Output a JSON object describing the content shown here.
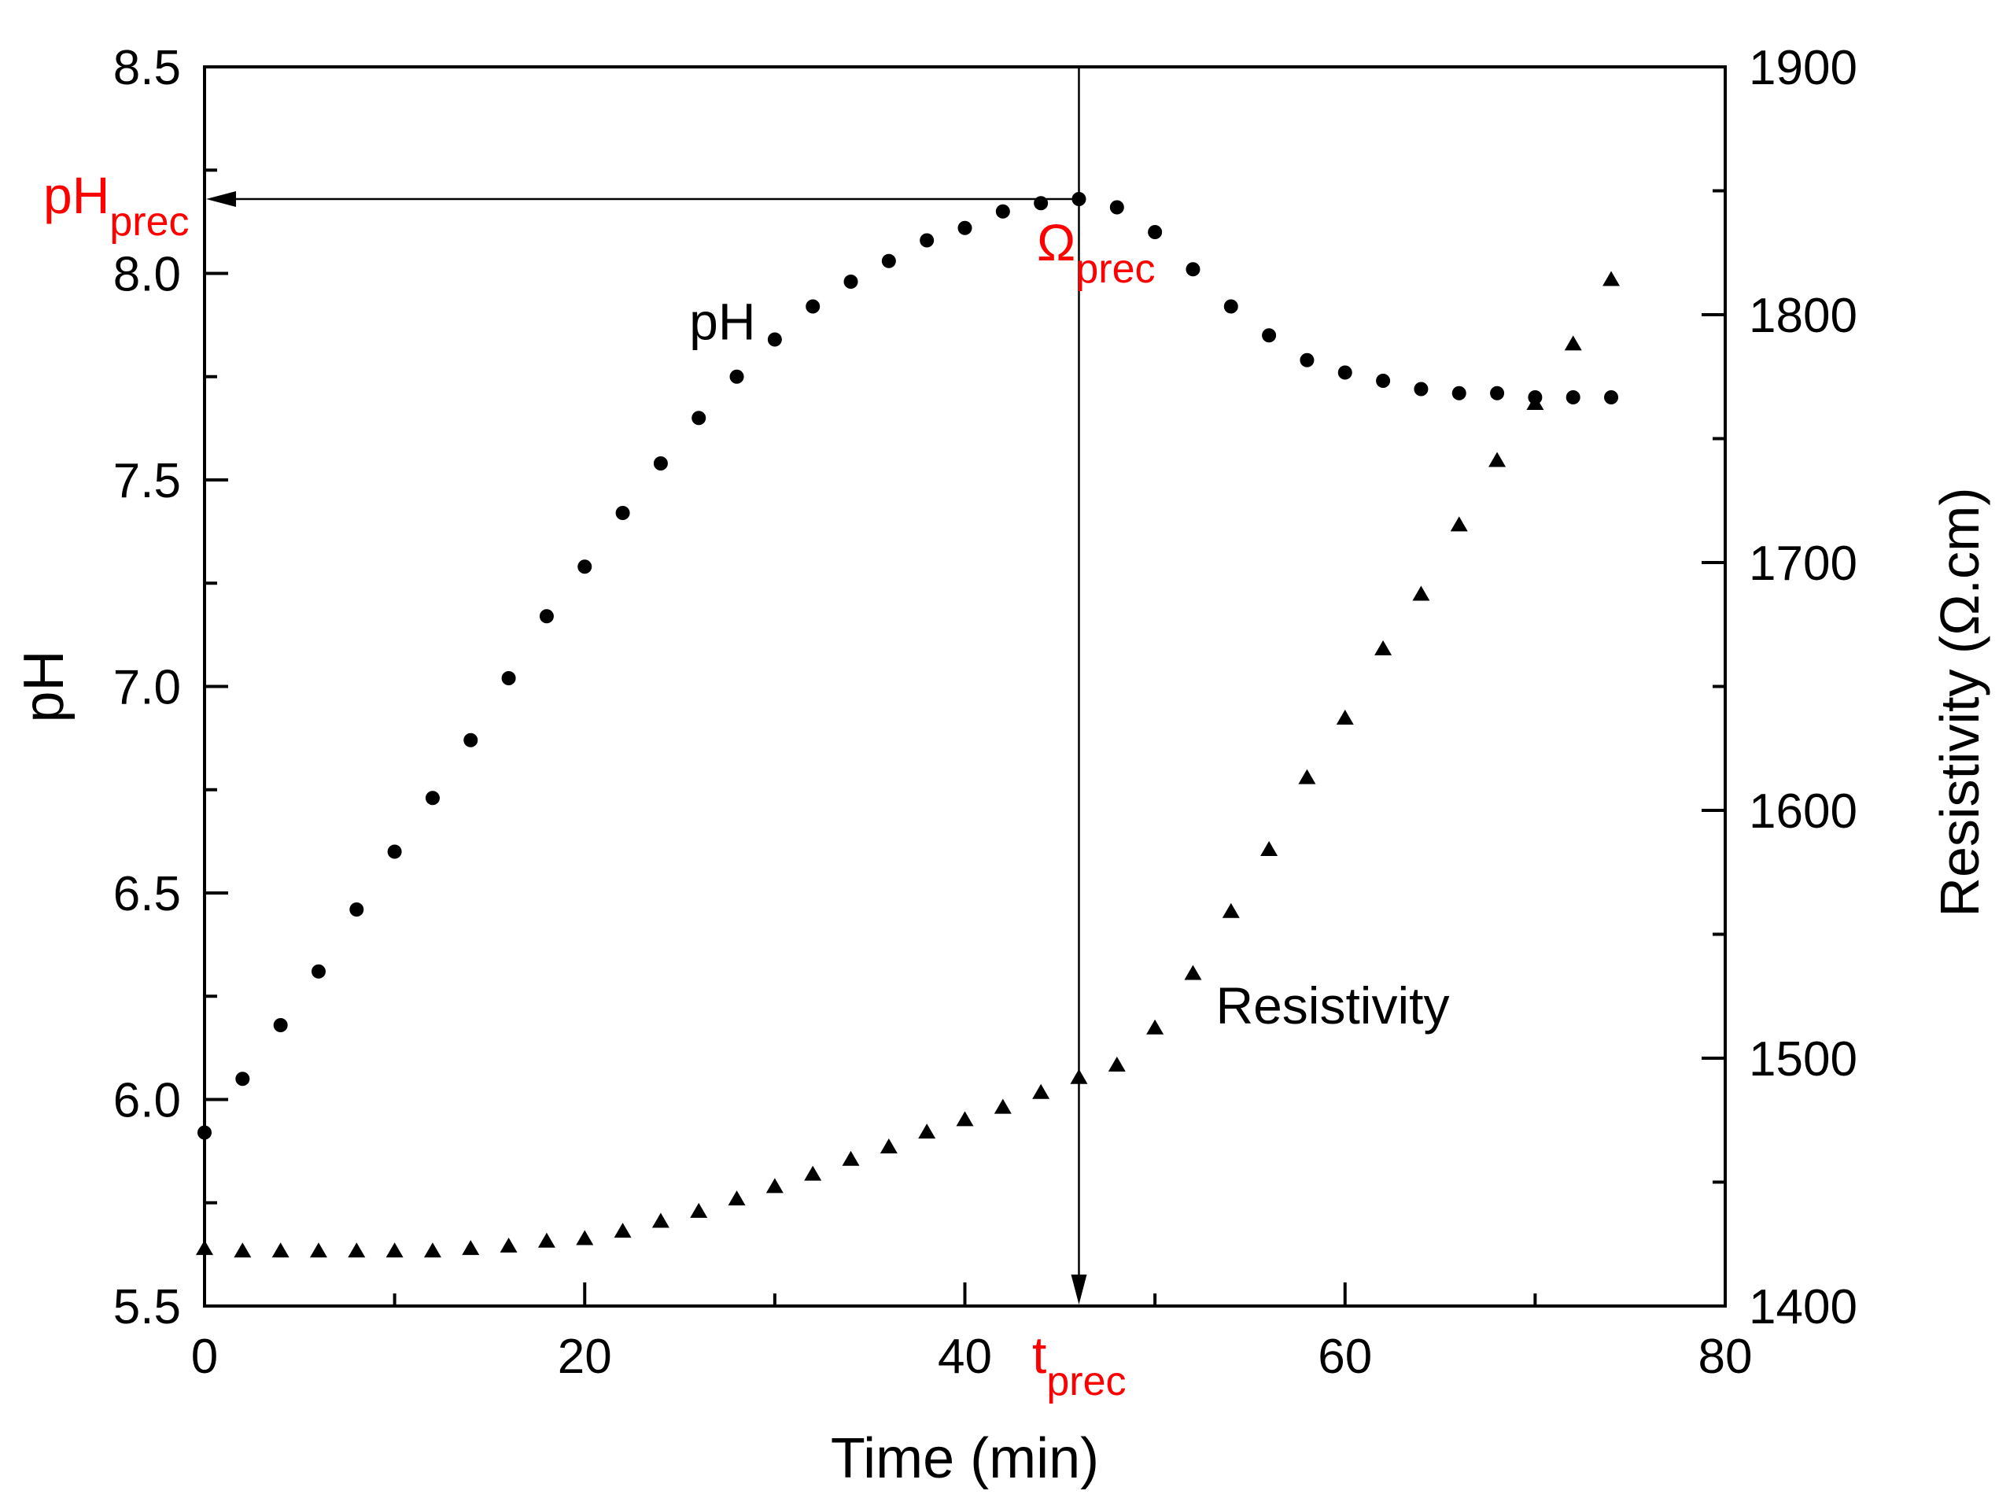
{
  "chart_data": {
    "type": "scatter",
    "xlabel": "Time (min)",
    "ylabel_left": "pH",
    "ylabel_right": "Resistivity (Ω.cm)",
    "xlim": [
      0,
      80
    ],
    "ylim_left": [
      5.5,
      8.5
    ],
    "ylim_right": [
      1400,
      1900
    ],
    "x_ticks": [
      "0",
      "20",
      "40",
      "60",
      "80"
    ],
    "y_left_ticks": [
      "5.5",
      "6.0",
      "6.5",
      "7.0",
      "7.5",
      "8.0",
      "8.5"
    ],
    "y_right_ticks": [
      "1400",
      "1500",
      "1600",
      "1700",
      "1800",
      "1900"
    ],
    "grid": false,
    "accent_color": "#ff0000",
    "series": [
      {
        "name": "pH",
        "axis": "left",
        "marker": "circle",
        "label": "pH",
        "x": [
          0,
          2,
          4,
          6,
          8,
          10,
          12,
          14,
          16,
          18,
          20,
          22,
          24,
          26,
          28,
          30,
          32,
          34,
          36,
          38,
          40,
          42,
          44,
          46,
          48,
          50,
          52,
          54,
          56,
          58,
          60,
          62,
          64,
          66,
          68,
          70,
          72,
          74
        ],
        "values": [
          5.92,
          6.05,
          6.18,
          6.31,
          6.46,
          6.6,
          6.73,
          6.87,
          7.02,
          7.17,
          7.29,
          7.42,
          7.54,
          7.65,
          7.75,
          7.84,
          7.92,
          7.98,
          8.03,
          8.08,
          8.11,
          8.15,
          8.17,
          8.18,
          8.16,
          8.1,
          8.01,
          7.92,
          7.85,
          7.79,
          7.76,
          7.74,
          7.72,
          7.71,
          7.71,
          7.7,
          7.7,
          7.7
        ]
      },
      {
        "name": "Resistivity",
        "axis": "right",
        "marker": "triangle",
        "label": "Resistivity",
        "x": [
          0,
          2,
          4,
          6,
          8,
          10,
          12,
          14,
          16,
          18,
          20,
          22,
          24,
          26,
          28,
          30,
          32,
          34,
          36,
          38,
          40,
          42,
          44,
          46,
          48,
          50,
          52,
          54,
          56,
          58,
          60,
          62,
          64,
          66,
          68,
          70,
          72,
          74
        ],
        "values": [
          1423,
          1422,
          1422,
          1422,
          1422,
          1422,
          1422,
          1423,
          1424,
          1426,
          1427,
          1430,
          1434,
          1438,
          1443,
          1448,
          1453,
          1459,
          1464,
          1470,
          1475,
          1480,
          1486,
          1492,
          1497,
          1512,
          1534,
          1559,
          1584,
          1613,
          1637,
          1665,
          1687,
          1715,
          1741,
          1764,
          1788,
          1814
        ]
      }
    ],
    "annotations": {
      "ph_prec": {
        "main": "pH",
        "sub": "prec",
        "value": 8.18
      },
      "omega_prec": {
        "main": "Ω",
        "sub": "prec"
      },
      "t_prec": {
        "main": "t",
        "sub": "prec",
        "value": 46
      }
    }
  }
}
